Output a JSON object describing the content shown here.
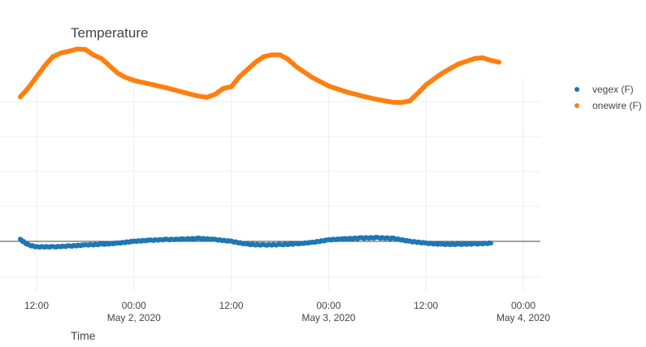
{
  "chart_data": {
    "type": "scatter",
    "title": "Temperature",
    "xlabel": "Time",
    "ylabel": "",
    "x_axis": {
      "type": "date",
      "range": [
        "2020-05-01 06:00",
        "2020-05-04 02:00"
      ],
      "ticks": [
        {
          "at": "2020-05-01 12:00",
          "label": "12:00",
          "sublabel": ""
        },
        {
          "at": "2020-05-02 00:00",
          "label": "00:00",
          "sublabel": "May 2, 2020"
        },
        {
          "at": "2020-05-02 12:00",
          "label": "12:00",
          "sublabel": ""
        },
        {
          "at": "2020-05-03 00:00",
          "label": "00:00",
          "sublabel": "May 3, 2020"
        },
        {
          "at": "2020-05-03 12:00",
          "label": "12:00",
          "sublabel": ""
        },
        {
          "at": "2020-05-04 00:00",
          "label": "00:00",
          "sublabel": "May 4, 2020"
        }
      ]
    },
    "y_axis": {
      "tick_labels_shown": false,
      "zero_line": true,
      "grid": true
    },
    "legend": {
      "placement": "top-right"
    },
    "series": [
      {
        "name": "vegex (F)",
        "color": "#1f77b4",
        "points": [
          [
            "2020-05-01 10:00",
            0.5
          ],
          [
            "2020-05-01 11:00",
            -1.0
          ],
          [
            "2020-05-01 12:00",
            -1.5
          ],
          [
            "2020-05-01 14:00",
            -1.5
          ],
          [
            "2020-05-01 16:00",
            -1.3
          ],
          [
            "2020-05-01 18:00",
            -1.0
          ],
          [
            "2020-05-01 20:00",
            -0.8
          ],
          [
            "2020-05-01 22:00",
            -0.5
          ],
          [
            "2020-05-02 00:00",
            0.0
          ],
          [
            "2020-05-02 02:00",
            0.3
          ],
          [
            "2020-05-02 04:00",
            0.5
          ],
          [
            "2020-05-02 06:00",
            0.6
          ],
          [
            "2020-05-02 08:00",
            0.8
          ],
          [
            "2020-05-02 10:00",
            0.5
          ],
          [
            "2020-05-02 12:00",
            0.0
          ],
          [
            "2020-05-02 14:00",
            -0.8
          ],
          [
            "2020-05-02 16:00",
            -1.0
          ],
          [
            "2020-05-02 18:00",
            -0.9
          ],
          [
            "2020-05-02 20:00",
            -0.7
          ],
          [
            "2020-05-02 22:00",
            -0.3
          ],
          [
            "2020-05-03 00:00",
            0.4
          ],
          [
            "2020-05-03 02:00",
            0.7
          ],
          [
            "2020-05-03 04:00",
            0.9
          ],
          [
            "2020-05-03 06:00",
            1.0
          ],
          [
            "2020-05-03 08:00",
            0.8
          ],
          [
            "2020-05-03 10:00",
            0.0
          ],
          [
            "2020-05-03 12:00",
            -0.5
          ],
          [
            "2020-05-03 14:00",
            -0.8
          ],
          [
            "2020-05-03 16:00",
            -0.8
          ],
          [
            "2020-05-03 18:00",
            -0.7
          ],
          [
            "2020-05-03 20:00",
            -0.5
          ]
        ]
      },
      {
        "name": "onewire (F)",
        "color": "#ff7f0e",
        "points": [
          [
            "2020-05-01 10:00",
            39.5
          ],
          [
            "2020-05-01 11:00",
            42.0
          ],
          [
            "2020-05-01 12:00",
            45.0
          ],
          [
            "2020-05-01 13:00",
            48.0
          ],
          [
            "2020-05-01 14:00",
            50.5
          ],
          [
            "2020-05-01 15:00",
            51.5
          ],
          [
            "2020-05-01 16:00",
            52.0
          ],
          [
            "2020-05-01 17:00",
            52.6
          ],
          [
            "2020-05-01 18:00",
            52.5
          ],
          [
            "2020-05-01 19:00",
            51.0
          ],
          [
            "2020-05-01 20:00",
            50.0
          ],
          [
            "2020-05-01 21:00",
            48.0
          ],
          [
            "2020-05-01 22:00",
            46.0
          ],
          [
            "2020-05-01 23:00",
            44.8
          ],
          [
            "2020-05-02 00:00",
            44.0
          ],
          [
            "2020-05-02 02:00",
            43.0
          ],
          [
            "2020-05-02 04:00",
            42.0
          ],
          [
            "2020-05-02 06:00",
            40.8
          ],
          [
            "2020-05-02 08:00",
            39.7
          ],
          [
            "2020-05-02 09:00",
            39.4
          ],
          [
            "2020-05-02 10:00",
            40.2
          ],
          [
            "2020-05-02 11:00",
            41.8
          ],
          [
            "2020-05-02 12:00",
            42.3
          ],
          [
            "2020-05-02 13:00",
            45.0
          ],
          [
            "2020-05-02 14:00",
            47.0
          ],
          [
            "2020-05-02 15:00",
            49.0
          ],
          [
            "2020-05-02 16:00",
            50.5
          ],
          [
            "2020-05-02 17:00",
            51.0
          ],
          [
            "2020-05-02 18:00",
            51.0
          ],
          [
            "2020-05-02 19:00",
            49.8
          ],
          [
            "2020-05-02 20:00",
            47.8
          ],
          [
            "2020-05-02 22:00",
            44.8
          ],
          [
            "2020-05-03 00:00",
            42.5
          ],
          [
            "2020-05-03 02:00",
            41.0
          ],
          [
            "2020-05-03 04:00",
            39.8
          ],
          [
            "2020-05-03 06:00",
            38.8
          ],
          [
            "2020-05-03 08:00",
            38.0
          ],
          [
            "2020-05-03 09:00",
            38.0
          ],
          [
            "2020-05-03 10:00",
            38.4
          ],
          [
            "2020-05-03 11:00",
            40.5
          ],
          [
            "2020-05-03 12:00",
            42.8
          ],
          [
            "2020-05-03 14:00",
            46.0
          ],
          [
            "2020-05-03 16:00",
            48.5
          ],
          [
            "2020-05-03 18:00",
            50.0
          ],
          [
            "2020-05-03 19:00",
            50.2
          ],
          [
            "2020-05-03 20:00",
            49.5
          ],
          [
            "2020-05-03 21:00",
            49.0
          ]
        ]
      }
    ]
  }
}
